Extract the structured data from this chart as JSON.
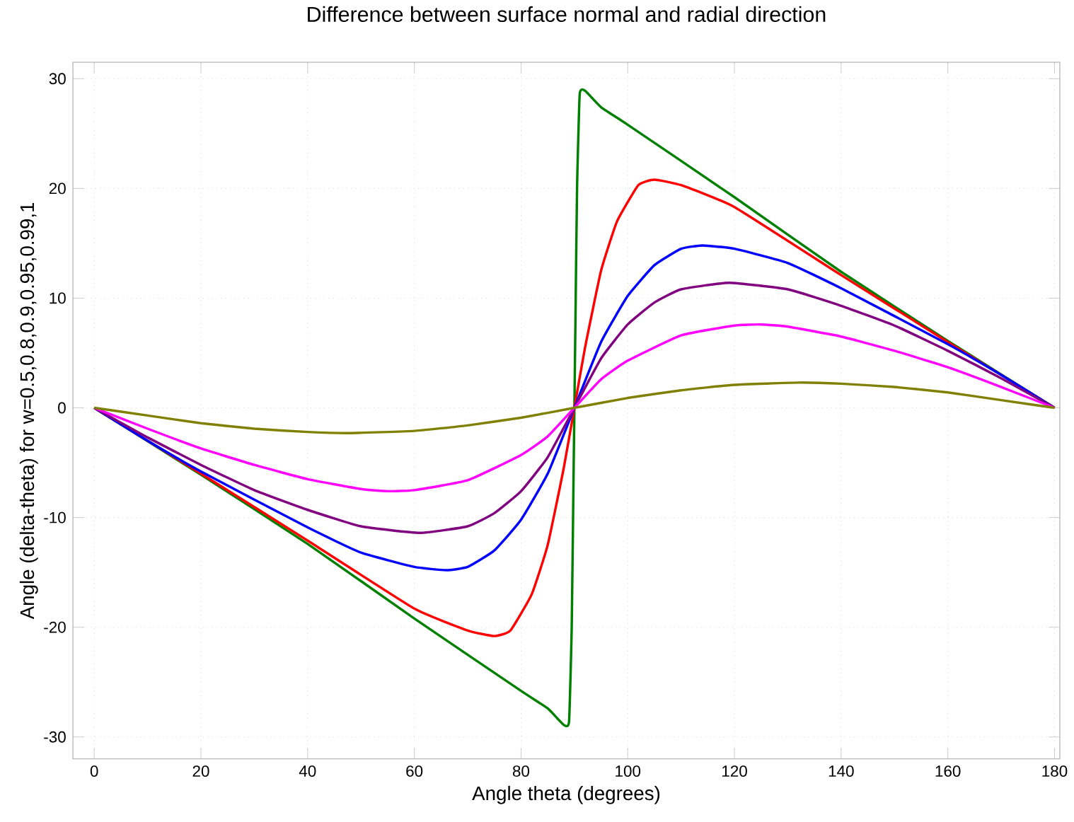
{
  "chart_data": {
    "type": "line",
    "title": "Difference between surface normal and radial direction",
    "xlabel": "Angle theta (degrees)",
    "ylabel": "Angle (delta-theta) for w=0.5,0.8,0.9,0.95,0.99,1",
    "xlim": [
      -4,
      181
    ],
    "ylim": [
      -32,
      31.5
    ],
    "xticks": [
      0,
      20,
      40,
      60,
      80,
      100,
      120,
      140,
      160,
      180
    ],
    "yticks": [
      -30,
      -20,
      -10,
      0,
      10,
      20,
      30
    ],
    "grid": true,
    "marker": "none",
    "line_style": "solid",
    "series": [
      {
        "color": "#008000",
        "x": [
          0,
          20,
          40,
          60,
          80,
          85,
          88,
          89,
          89.5,
          89.8,
          90,
          90.2,
          90.5,
          91,
          92,
          95,
          100,
          120,
          140,
          160,
          180
        ],
        "values": [
          0,
          -6.1,
          -12.4,
          -19.2,
          -25.8,
          -27.4,
          -28.9,
          -28.6,
          -20,
          -8,
          0,
          8,
          20,
          28.6,
          28.9,
          27.4,
          25.8,
          19.2,
          12.4,
          6.1,
          0
        ]
      },
      {
        "color": "#ff0000",
        "x": [
          0,
          20,
          40,
          60,
          70,
          75,
          78,
          82,
          85,
          88,
          90,
          92,
          95,
          98,
          102,
          105,
          110,
          120,
          140,
          160,
          180
        ],
        "values": [
          0,
          -6,
          -12.1,
          -18.3,
          -20.3,
          -20.8,
          -20.3,
          -17,
          -12.5,
          -5.5,
          0,
          5.5,
          12.5,
          17,
          20.3,
          20.8,
          20.3,
          18.3,
          12.1,
          6,
          0
        ]
      },
      {
        "color": "#0000ff",
        "x": [
          0,
          10,
          20,
          40,
          50,
          60,
          66,
          70,
          75,
          80,
          85,
          90,
          95,
          100,
          105,
          110,
          114,
          120,
          130,
          140,
          160,
          170,
          180
        ],
        "values": [
          0,
          -3,
          -5.8,
          -10.9,
          -13.2,
          -14.5,
          -14.8,
          -14.5,
          -13,
          -10.2,
          -6,
          0,
          6,
          10.2,
          13,
          14.5,
          14.8,
          14.5,
          13.2,
          10.9,
          5.8,
          3,
          0
        ]
      },
      {
        "color": "#800080",
        "x": [
          0,
          10,
          20,
          30,
          40,
          50,
          61,
          70,
          75,
          80,
          85,
          90,
          95,
          100,
          105,
          110,
          119,
          130,
          140,
          150,
          160,
          170,
          180
        ],
        "values": [
          0,
          -2.7,
          -5.2,
          -7.5,
          -9.3,
          -10.8,
          -11.4,
          -10.8,
          -9.6,
          -7.6,
          -4.5,
          0,
          4.5,
          7.6,
          9.6,
          10.8,
          11.4,
          10.8,
          9.3,
          7.5,
          5.2,
          2.7,
          0
        ]
      },
      {
        "color": "#ff00ff",
        "x": [
          0,
          10,
          20,
          30,
          40,
          50,
          55,
          60,
          70,
          80,
          85,
          90,
          95,
          100,
          110,
          120,
          125,
          130,
          140,
          150,
          160,
          170,
          180
        ],
        "values": [
          0,
          -1.9,
          -3.7,
          -5.2,
          -6.5,
          -7.4,
          -7.6,
          -7.5,
          -6.6,
          -4.3,
          -2.6,
          0,
          2.6,
          4.3,
          6.6,
          7.5,
          7.6,
          7.4,
          6.5,
          5.2,
          3.7,
          1.9,
          0
        ]
      },
      {
        "color": "#808000",
        "x": [
          0,
          10,
          20,
          30,
          40,
          48,
          60,
          70,
          80,
          90,
          100,
          110,
          120,
          132,
          140,
          150,
          160,
          170,
          180
        ],
        "values": [
          0,
          -0.7,
          -1.4,
          -1.9,
          -2.2,
          -2.3,
          -2.1,
          -1.6,
          -0.9,
          0,
          0.9,
          1.6,
          2.1,
          2.3,
          2.2,
          1.9,
          1.4,
          0.7,
          0
        ]
      }
    ]
  }
}
